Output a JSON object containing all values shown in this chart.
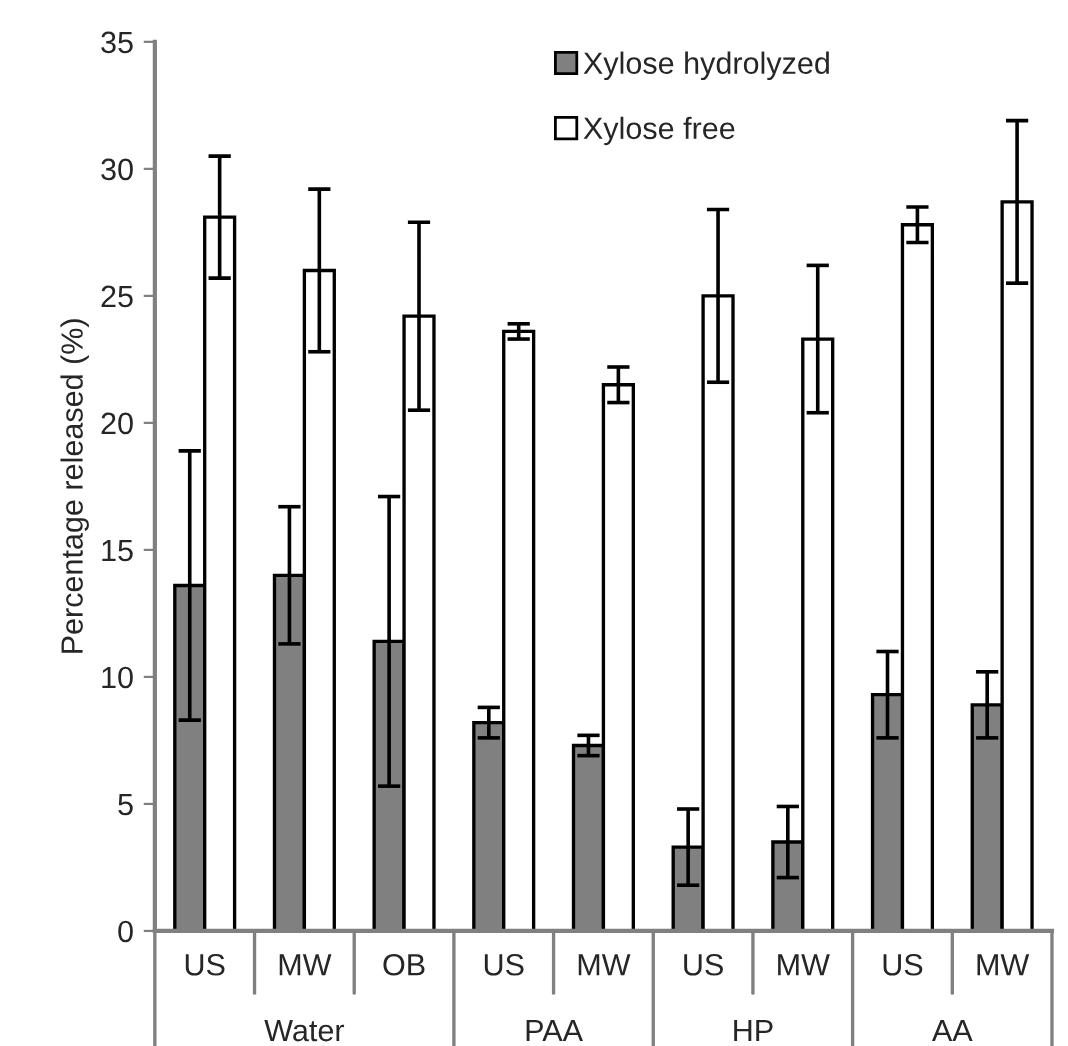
{
  "chart_data": {
    "type": "bar",
    "ylabel": "Percentage released (%)",
    "categories": [
      "US",
      "MW",
      "OB",
      "US",
      "MW",
      "US",
      "MW",
      "US",
      "MW"
    ],
    "series": [
      {
        "name": "Xylose hydrolyzed",
        "color": "#808080",
        "values": [
          13.6,
          14.0,
          11.4,
          8.2,
          7.3,
          3.3,
          3.5,
          9.3,
          8.9
        ],
        "errors": [
          5.3,
          2.7,
          5.7,
          0.6,
          0.4,
          1.5,
          1.4,
          1.7,
          1.3
        ]
      },
      {
        "name": "Xylose free",
        "color": "#ffffff",
        "values": [
          28.1,
          26.0,
          24.2,
          23.6,
          21.5,
          25.0,
          23.3,
          27.8,
          28.7
        ],
        "errors": [
          2.4,
          3.2,
          3.7,
          0.3,
          0.7,
          3.4,
          2.9,
          0.7,
          3.2
        ]
      }
    ],
    "annotations": [
      "Water",
      "PAA",
      "HP",
      "AA"
    ],
    "ylim": [
      0,
      35
    ],
    "yticks": [
      0,
      5,
      10,
      15,
      20,
      25,
      30,
      35
    ],
    "grid": false,
    "legend": "top"
  }
}
